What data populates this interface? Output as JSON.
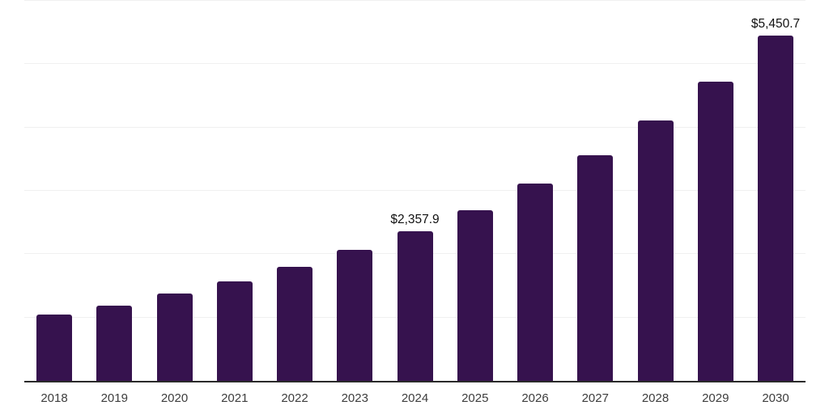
{
  "chart_data": {
    "type": "bar",
    "title": "",
    "xlabel": "",
    "ylabel": "",
    "categories": [
      "2018",
      "2019",
      "2020",
      "2021",
      "2022",
      "2023",
      "2024",
      "2025",
      "2026",
      "2027",
      "2028",
      "2029",
      "2030"
    ],
    "values": [
      1045,
      1185,
      1380,
      1570,
      1800,
      2065,
      2357.9,
      2700,
      3110,
      3560,
      4110,
      4720,
      5450.7
    ],
    "data_labels": {
      "2024": "$2,357.9",
      "2030": "$5,450.7"
    },
    "ylim": [
      0,
      6000
    ],
    "gridline_step": 1000,
    "grid": "horizontal-only",
    "legend": "none",
    "y_tick_labels": "none",
    "colors": {
      "bar": "#36124E",
      "axis_line": "#2a2a2a",
      "gridline": "#f0f0f0",
      "tick_label": "#3d3d3d",
      "data_label": "#111111",
      "background": "#ffffff"
    }
  }
}
